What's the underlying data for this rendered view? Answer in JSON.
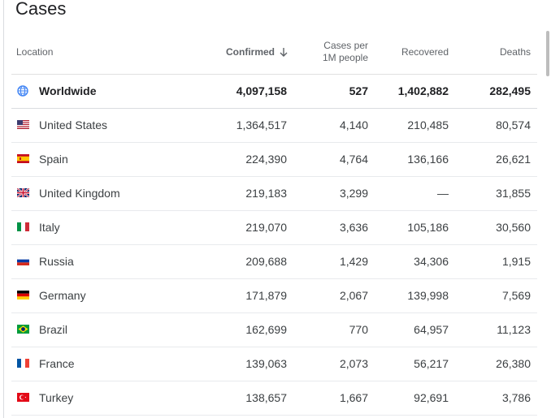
{
  "title": "Cases",
  "columns": {
    "location": "Location",
    "confirmed": "Confirmed",
    "cases_per_line1": "Cases per",
    "cases_per_line2": "1M people",
    "recovered": "Recovered",
    "deaths": "Deaths"
  },
  "rows": [
    {
      "name": "Worldwide",
      "confirmed": "4,097,158",
      "cases_per_1m": "527",
      "recovered": "1,402,882",
      "deaths": "282,495",
      "icon": "globe-icon"
    },
    {
      "name": "United States",
      "confirmed": "1,364,517",
      "cases_per_1m": "4,140",
      "recovered": "210,485",
      "deaths": "80,574",
      "icon": "us-flag-icon"
    },
    {
      "name": "Spain",
      "confirmed": "224,390",
      "cases_per_1m": "4,764",
      "recovered": "136,166",
      "deaths": "26,621",
      "icon": "spain-flag-icon"
    },
    {
      "name": "United Kingdom",
      "confirmed": "219,183",
      "cases_per_1m": "3,299",
      "recovered": "—",
      "deaths": "31,855",
      "icon": "uk-flag-icon"
    },
    {
      "name": "Italy",
      "confirmed": "219,070",
      "cases_per_1m": "3,636",
      "recovered": "105,186",
      "deaths": "30,560",
      "icon": "italy-flag-icon"
    },
    {
      "name": "Russia",
      "confirmed": "209,688",
      "cases_per_1m": "1,429",
      "recovered": "34,306",
      "deaths": "1,915",
      "icon": "russia-flag-icon"
    },
    {
      "name": "Germany",
      "confirmed": "171,879",
      "cases_per_1m": "2,067",
      "recovered": "139,998",
      "deaths": "7,569",
      "icon": "germany-flag-icon"
    },
    {
      "name": "Brazil",
      "confirmed": "162,699",
      "cases_per_1m": "770",
      "recovered": "64,957",
      "deaths": "11,123",
      "icon": "brazil-flag-icon"
    },
    {
      "name": "France",
      "confirmed": "139,063",
      "cases_per_1m": "2,073",
      "recovered": "56,217",
      "deaths": "26,380",
      "icon": "france-flag-icon"
    },
    {
      "name": "Turkey",
      "confirmed": "138,657",
      "cases_per_1m": "1,667",
      "recovered": "92,691",
      "deaths": "3,786",
      "icon": "turkey-flag-icon"
    }
  ]
}
